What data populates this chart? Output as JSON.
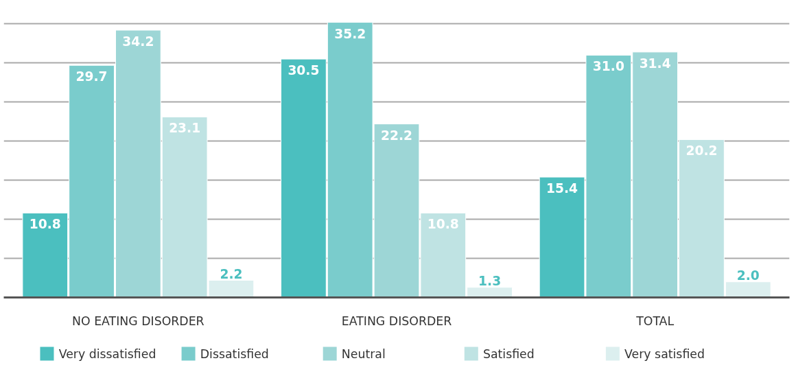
{
  "chart_data": {
    "type": "bar",
    "categories": [
      "NO EATING DISORDER",
      "EATING DISORDER",
      "TOTAL"
    ],
    "series": [
      {
        "name": "Very dissatisfied",
        "color": "#4bbfbf",
        "values": [
          10.8,
          30.5,
          15.4
        ],
        "value_labels": [
          "10.8",
          "30.5",
          "15.4"
        ]
      },
      {
        "name": "Dissatisfied",
        "color": "#7acccc",
        "values": [
          29.7,
          35.2,
          31.0
        ],
        "value_labels": [
          "29.7",
          "35.2",
          "31.0"
        ]
      },
      {
        "name": "Neutral",
        "color": "#9dd6d6",
        "values": [
          34.2,
          22.2,
          31.4
        ],
        "value_labels": [
          "34.2",
          "22.2",
          "31.4"
        ]
      },
      {
        "name": "Satisfied",
        "color": "#bfe3e3",
        "values": [
          23.1,
          10.8,
          20.2
        ],
        "value_labels": [
          "23.1",
          "10.8",
          "20.2"
        ]
      },
      {
        "name": "Very satisfied",
        "color": "#dcefef",
        "values": [
          2.2,
          1.3,
          2.0
        ],
        "value_labels": [
          "2.2",
          "1.3",
          "2.0"
        ]
      }
    ],
    "tick_labels": "x",
    "grid": "y",
    "legend": "bottom"
  }
}
